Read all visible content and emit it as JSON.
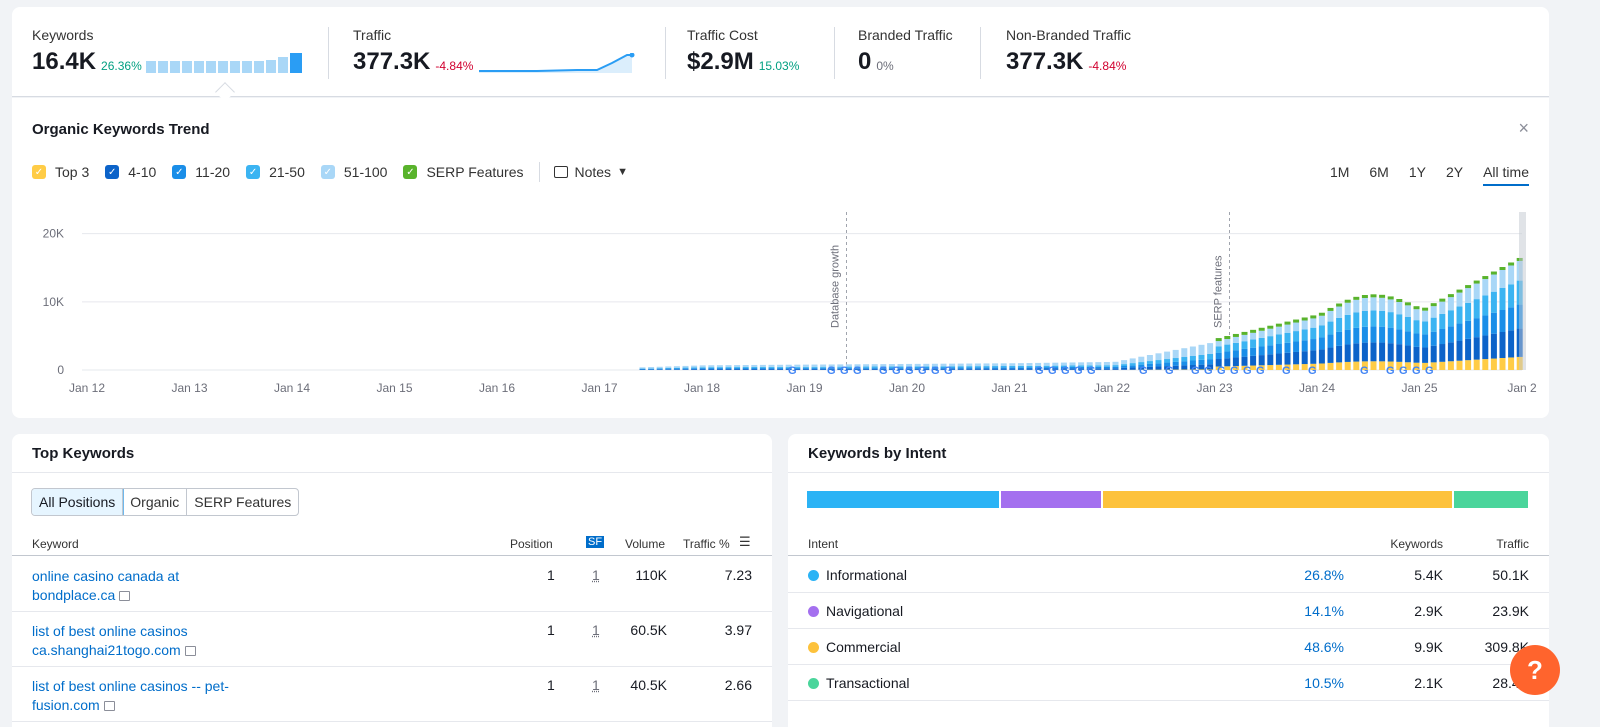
{
  "metrics": {
    "keywords": {
      "label": "Keywords",
      "value": "16.4K",
      "delta": "26.36%"
    },
    "traffic": {
      "label": "Traffic",
      "value": "377.3K",
      "delta": "-4.84%"
    },
    "traffic_cost": {
      "label": "Traffic Cost",
      "value": "$2.9M",
      "delta": "15.03%"
    },
    "branded": {
      "label": "Branded Traffic",
      "value": "0",
      "delta": "0%"
    },
    "non_branded": {
      "label": "Non-Branded Traffic",
      "value": "377.3K",
      "delta": "-4.84%"
    }
  },
  "trend": {
    "title": "Organic Keywords Trend",
    "close": "×",
    "legend": [
      "Top 3",
      "4-10",
      "11-20",
      "21-50",
      "51-100",
      "SERP Features"
    ],
    "notes_label": "Notes",
    "ranges": [
      "1M",
      "6M",
      "1Y",
      "2Y",
      "All time"
    ],
    "active_range": "All time"
  },
  "chart_data": {
    "type": "bar",
    "stacked": true,
    "y_ticks": [
      "20K",
      "10K",
      "0"
    ],
    "ylim": [
      0,
      22000
    ],
    "x_ticks": [
      "Jan 12",
      "Jan 13",
      "Jan 14",
      "Jan 15",
      "Jan 16",
      "Jan 17",
      "Jan 18",
      "Jan 19",
      "Jan 20",
      "Jan 21",
      "Jan 22",
      "Jan 23",
      "Jan 24",
      "Jan 25",
      "Jan 2"
    ],
    "annotations": [
      "Database growth",
      "SERP features"
    ],
    "series_colors": {
      "Top 3": "#ffcc46",
      "4-10": "#0c63c9",
      "11-20": "#1a8ee8",
      "21-50": "#3bb4f2",
      "51-100": "#a9d7f7",
      "SERP Features": "#59b32c"
    },
    "approx_totals": [
      {
        "period": "Jan 17",
        "value": 200
      },
      {
        "period": "Jan 18",
        "value": 700
      },
      {
        "period": "Jan 19",
        "value": 800
      },
      {
        "period": "Jan 20",
        "value": 900
      },
      {
        "period": "Jan 21",
        "value": 1000
      },
      {
        "period": "Jan 22",
        "value": 1200
      },
      {
        "period": "Jan 23",
        "value": 4200
      },
      {
        "period": "Jan 24",
        "value": 7800
      },
      {
        "period": "Jan 25",
        "value": 8500
      },
      {
        "period": "Jan 2",
        "value": 16400
      }
    ]
  },
  "top_keywords": {
    "title": "Top Keywords",
    "tabs": [
      "All Positions",
      "Organic",
      "SERP Features"
    ],
    "active_tab": "All Positions",
    "columns": [
      "Keyword",
      "Position",
      "SF",
      "Volume",
      "Traffic %"
    ],
    "rows": [
      {
        "keyword": "online casino canada at",
        "domain": "bondplace.ca",
        "position": "1",
        "sf": "1",
        "volume": "110K",
        "traffic": "7.23"
      },
      {
        "keyword": "list of best online casinos",
        "domain": "ca.shanghai21togo.com",
        "position": "1",
        "sf": "1",
        "volume": "60.5K",
        "traffic": "3.97"
      },
      {
        "keyword": "list of best online casinos -- pet-",
        "domain": "fusion.com",
        "position": "1",
        "sf": "1",
        "volume": "40.5K",
        "traffic": "2.66"
      }
    ]
  },
  "intent": {
    "title": "Keywords by Intent",
    "columns": [
      "Intent",
      "Keywords",
      "Traffic"
    ],
    "rows": [
      {
        "name": "Informational",
        "color": "#2bb3f5",
        "pct": "26.8%",
        "keywords": "5.4K",
        "traffic": "50.1K",
        "share": 0.268
      },
      {
        "name": "Navigational",
        "color": "#a470ef",
        "pct": "14.1%",
        "keywords": "2.9K",
        "traffic": "23.9K",
        "share": 0.141
      },
      {
        "name": "Commercial",
        "color": "#fdc23c",
        "pct": "48.6%",
        "keywords": "9.9K",
        "traffic": "309.8K",
        "share": 0.486
      },
      {
        "name": "Transactional",
        "color": "#4ad59b",
        "pct": "10.5%",
        "keywords": "2.1K",
        "traffic": "28.4K",
        "share": 0.105
      }
    ]
  },
  "help_label": "?"
}
